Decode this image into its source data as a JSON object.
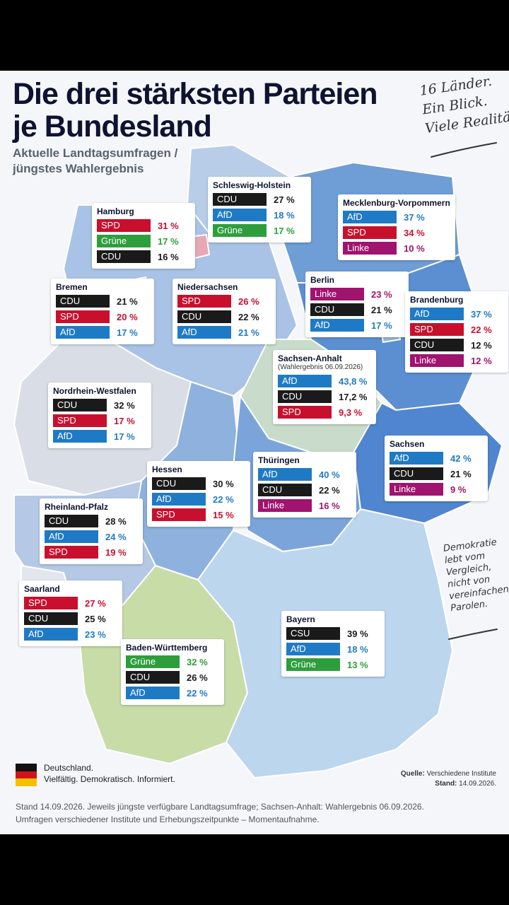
{
  "title_line1": "Die drei stärksten Parteien",
  "title_line2": "je Bundesland",
  "subtitle_line1": "Aktuelle Landtagsumfragen /",
  "subtitle_line2": "jüngstes Wahlergebnis",
  "slogan": [
    "16 Länder.",
    "Ein Blick.",
    "Viele Realitäten."
  ],
  "note": [
    "Demokratie",
    "lebt vom",
    "Vergleich,",
    "nicht von",
    "vereinfachenden",
    "Parolen."
  ],
  "legend": {
    "line1": "Deutschland.",
    "line2": "Vielfältig. Demokratisch. Informiert."
  },
  "source": {
    "label": "Quelle:",
    "value": "Verschiedene Institute",
    "stand_label": "Stand:",
    "stand_value": "14.09.2026."
  },
  "footer": {
    "line1": "Stand 14.09.2026. Jeweils jüngste verfügbare Landtagsumfrage; Sachsen-Anhalt: Wahlergebnis 06.09.2026.",
    "line2": "Umfragen verschiedener Institute und Erhebungszeitpunkte – Momentaufnahme."
  },
  "party_colors": {
    "CDU": "#1a1a1a",
    "CSU": "#1a1a1a",
    "SPD": "#c8102e",
    "AfD": "#1f7ac6",
    "Grüne": "#2e9e3c",
    "Linke": "#a0136f"
  },
  "chart_data": {
    "type": "table",
    "unit": "%",
    "states": [
      {
        "name": "Schleswig-Holstein",
        "parties": [
          {
            "party": "CDU",
            "value": "27 %"
          },
          {
            "party": "AfD",
            "value": "18 %"
          },
          {
            "party": "Grüne",
            "value": "17 %"
          }
        ]
      },
      {
        "name": "Mecklenburg-Vorpommern",
        "parties": [
          {
            "party": "AfD",
            "value": "37 %"
          },
          {
            "party": "SPD",
            "value": "34 %"
          },
          {
            "party": "Linke",
            "value": "10 %"
          }
        ]
      },
      {
        "name": "Hamburg",
        "parties": [
          {
            "party": "SPD",
            "value": "31 %"
          },
          {
            "party": "Grüne",
            "value": "17 %"
          },
          {
            "party": "CDU",
            "value": "16 %"
          }
        ]
      },
      {
        "name": "Bremen",
        "parties": [
          {
            "party": "CDU",
            "value": "21 %"
          },
          {
            "party": "SPD",
            "value": "20 %"
          },
          {
            "party": "AfD",
            "value": "17 %"
          }
        ]
      },
      {
        "name": "Niedersachsen",
        "parties": [
          {
            "party": "SPD",
            "value": "26 %"
          },
          {
            "party": "CDU",
            "value": "22 %"
          },
          {
            "party": "AfD",
            "value": "21 %"
          }
        ]
      },
      {
        "name": "Berlin",
        "parties": [
          {
            "party": "Linke",
            "value": "23 %"
          },
          {
            "party": "CDU",
            "value": "21 %"
          },
          {
            "party": "AfD",
            "value": "17 %"
          }
        ]
      },
      {
        "name": "Brandenburg",
        "parties": [
          {
            "party": "AfD",
            "value": "37 %"
          },
          {
            "party": "SPD",
            "value": "22 %"
          },
          {
            "party": "CDU",
            "value": "12 %"
          },
          {
            "party": "Linke",
            "value": "12 %"
          }
        ]
      },
      {
        "name": "Sachsen-Anhalt",
        "extra": "(Wahlergebnis 06.09.2026)",
        "parties": [
          {
            "party": "AfD",
            "value": "43,8 %"
          },
          {
            "party": "CDU",
            "value": "17,2 %"
          },
          {
            "party": "SPD",
            "value": "9,3 %"
          }
        ]
      },
      {
        "name": "Nordrhein-Westfalen",
        "parties": [
          {
            "party": "CDU",
            "value": "32 %"
          },
          {
            "party": "SPD",
            "value": "17 %"
          },
          {
            "party": "AfD",
            "value": "17 %"
          }
        ]
      },
      {
        "name": "Sachsen",
        "parties": [
          {
            "party": "AfD",
            "value": "42 %"
          },
          {
            "party": "CDU",
            "value": "21 %"
          },
          {
            "party": "Linke",
            "value": "9 %"
          }
        ]
      },
      {
        "name": "Thüringen",
        "parties": [
          {
            "party": "AfD",
            "value": "40 %"
          },
          {
            "party": "CDU",
            "value": "22 %"
          },
          {
            "party": "Linke",
            "value": "16 %"
          }
        ]
      },
      {
        "name": "Hessen",
        "parties": [
          {
            "party": "CDU",
            "value": "30 %"
          },
          {
            "party": "AfD",
            "value": "22 %"
          },
          {
            "party": "SPD",
            "value": "15 %"
          }
        ]
      },
      {
        "name": "Rheinland-Pfalz",
        "parties": [
          {
            "party": "CDU",
            "value": "28 %"
          },
          {
            "party": "AfD",
            "value": "24 %"
          },
          {
            "party": "SPD",
            "value": "19 %"
          }
        ]
      },
      {
        "name": "Saarland",
        "parties": [
          {
            "party": "SPD",
            "value": "27 %"
          },
          {
            "party": "CDU",
            "value": "25 %"
          },
          {
            "party": "AfD",
            "value": "23 %"
          }
        ]
      },
      {
        "name": "Bayern",
        "parties": [
          {
            "party": "CSU",
            "value": "39 %"
          },
          {
            "party": "AfD",
            "value": "18 %"
          },
          {
            "party": "Grüne",
            "value": "13 %"
          }
        ]
      },
      {
        "name": "Baden-Württemberg",
        "parties": [
          {
            "party": "Grüne",
            "value": "32 %"
          },
          {
            "party": "CDU",
            "value": "26 %"
          },
          {
            "party": "AfD",
            "value": "22 %"
          }
        ]
      }
    ]
  }
}
